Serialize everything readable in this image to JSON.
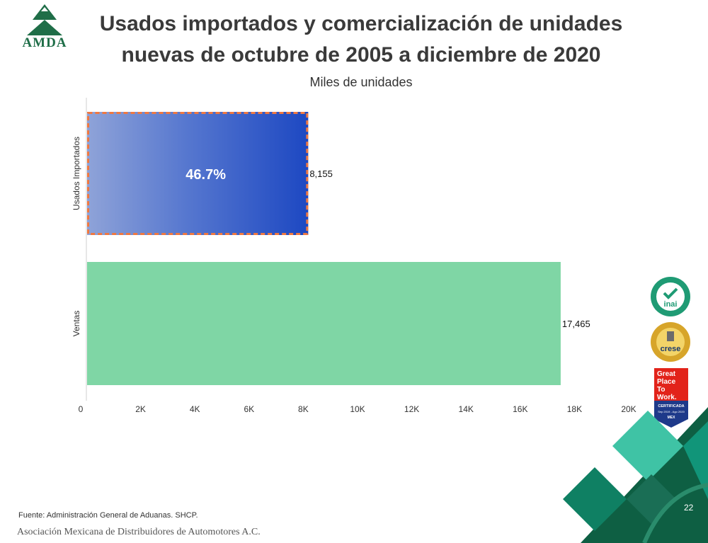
{
  "branding": {
    "logo_text": "AMDA",
    "colors": {
      "dark_green": "#1f6e48",
      "teal": "#119579",
      "light_teal": "#3fc3a5"
    }
  },
  "title_line1": "Usados importados y comercialización de unidades",
  "title_line2": "nuevas de octubre de 2005 a diciembre de 2020",
  "chart_data": {
    "type": "bar",
    "orientation": "horizontal",
    "title": "Usados importados y comercialización de unidades nuevas de octubre de 2005 a diciembre de 2020",
    "subtitle": "Miles de unidades",
    "categories": [
      "Usados Importados",
      "Ventas"
    ],
    "values": [
      8155,
      17465
    ],
    "value_labels": [
      "8,155",
      "17,465"
    ],
    "bar_colors": [
      "#2451c7",
      "#7fd6a5"
    ],
    "highlight_border_color": "#f07840",
    "highlight_label": "46.7%",
    "xlim": [
      0,
      20000
    ],
    "xticks": [
      0,
      2000,
      4000,
      6000,
      8000,
      10000,
      12000,
      14000,
      16000,
      18000,
      20000
    ],
    "xtick_labels": [
      "0",
      "2K",
      "4K",
      "6K",
      "8K",
      "10K",
      "12K",
      "14K",
      "16K",
      "18K",
      "20K"
    ],
    "grid": false,
    "legend": "none"
  },
  "badges": {
    "inai": {
      "label": "inai"
    },
    "crese": {
      "label": "crese"
    },
    "gptw": {
      "lines": [
        "Great",
        "Place",
        "To",
        "Work."
      ],
      "cert": "CERTIFICADA",
      "dates": "Sep 2019 - Ago 2020",
      "country": "MEX"
    }
  },
  "footer": {
    "source": "Fuente: Administración General de Aduanas. SHCP.",
    "organization": "Asociación Mexicana de Distribuidores de Automotores A.C.",
    "page_number": "22"
  }
}
